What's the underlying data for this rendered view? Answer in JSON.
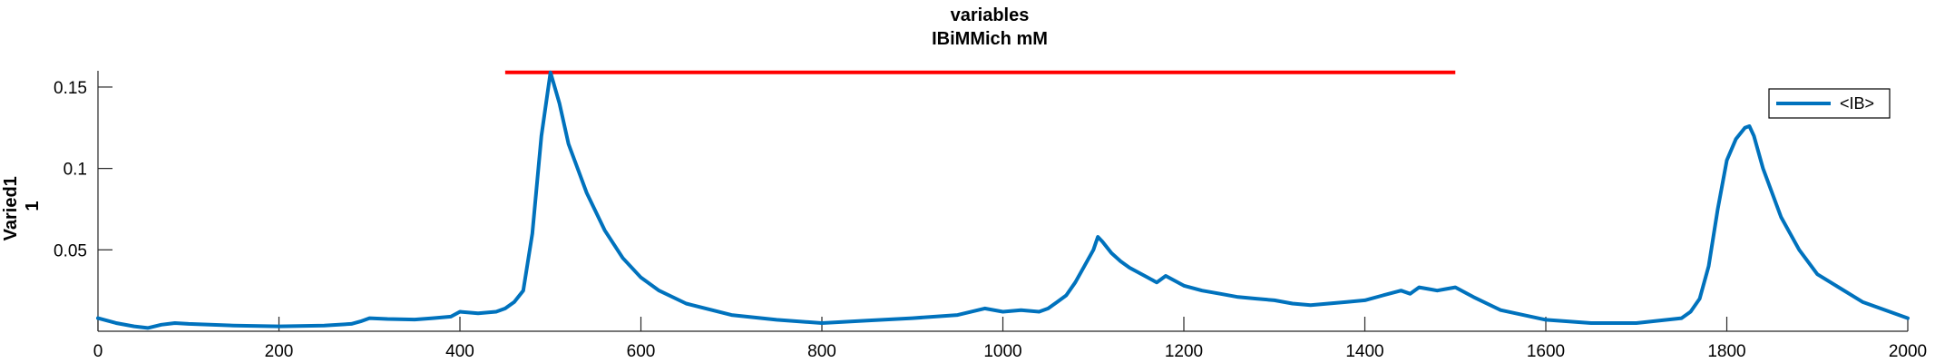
{
  "chart_data": {
    "type": "line",
    "title": "variables",
    "subtitle": "IBiMMich mM",
    "ylabel": [
      "Varied1",
      "1"
    ],
    "xlabel": "",
    "xlim": [
      0,
      2000
    ],
    "ylim": [
      0,
      0.16
    ],
    "xticks": [
      0,
      200,
      400,
      600,
      800,
      1000,
      1200,
      1400,
      1600,
      1800,
      2000
    ],
    "yticks": [
      0.05,
      0.1,
      0.15
    ],
    "ytick_labels": [
      "0.05",
      "0.1",
      "0.15"
    ],
    "grid": false,
    "legend": {
      "position": "top-right",
      "entries": [
        "<IB>"
      ]
    },
    "reference_line": {
      "x": [
        450,
        1500
      ],
      "y": 0.159,
      "color": "#ff0000"
    },
    "series": [
      {
        "name": "<IB>",
        "color": "#0072bd",
        "x": [
          0,
          20,
          40,
          55,
          70,
          85,
          100,
          150,
          200,
          250,
          280,
          290,
          300,
          320,
          350,
          370,
          380,
          390,
          400,
          420,
          440,
          450,
          460,
          470,
          480,
          490,
          500,
          510,
          520,
          530,
          540,
          560,
          580,
          600,
          620,
          650,
          700,
          750,
          800,
          850,
          900,
          950,
          980,
          1000,
          1020,
          1040,
          1050,
          1060,
          1070,
          1080,
          1090,
          1100,
          1105,
          1110,
          1120,
          1130,
          1140,
          1150,
          1160,
          1170,
          1180,
          1190,
          1200,
          1220,
          1240,
          1260,
          1280,
          1300,
          1320,
          1340,
          1360,
          1380,
          1400,
          1420,
          1440,
          1450,
          1460,
          1470,
          1480,
          1490,
          1500,
          1520,
          1550,
          1600,
          1650,
          1700,
          1750,
          1760,
          1770,
          1780,
          1790,
          1800,
          1810,
          1820,
          1825,
          1830,
          1840,
          1860,
          1880,
          1900,
          1950,
          2000
        ],
        "y": [
          0.008,
          0.005,
          0.003,
          0.002,
          0.004,
          0.005,
          0.0045,
          0.0035,
          0.003,
          0.0035,
          0.0045,
          0.006,
          0.008,
          0.0075,
          0.0072,
          0.008,
          0.0085,
          0.009,
          0.012,
          0.011,
          0.012,
          0.014,
          0.018,
          0.025,
          0.06,
          0.12,
          0.159,
          0.14,
          0.115,
          0.1,
          0.085,
          0.062,
          0.045,
          0.033,
          0.025,
          0.017,
          0.01,
          0.007,
          0.005,
          0.0065,
          0.008,
          0.01,
          0.014,
          0.012,
          0.013,
          0.012,
          0.014,
          0.018,
          0.022,
          0.03,
          0.04,
          0.05,
          0.058,
          0.055,
          0.048,
          0.043,
          0.039,
          0.036,
          0.033,
          0.03,
          0.034,
          0.031,
          0.028,
          0.025,
          0.023,
          0.021,
          0.02,
          0.019,
          0.017,
          0.016,
          0.017,
          0.018,
          0.019,
          0.022,
          0.025,
          0.023,
          0.027,
          0.026,
          0.025,
          0.026,
          0.027,
          0.021,
          0.013,
          0.007,
          0.005,
          0.005,
          0.008,
          0.012,
          0.02,
          0.04,
          0.075,
          0.105,
          0.118,
          0.125,
          0.126,
          0.12,
          0.1,
          0.07,
          0.05,
          0.035,
          0.018,
          0.008
        ]
      }
    ]
  }
}
